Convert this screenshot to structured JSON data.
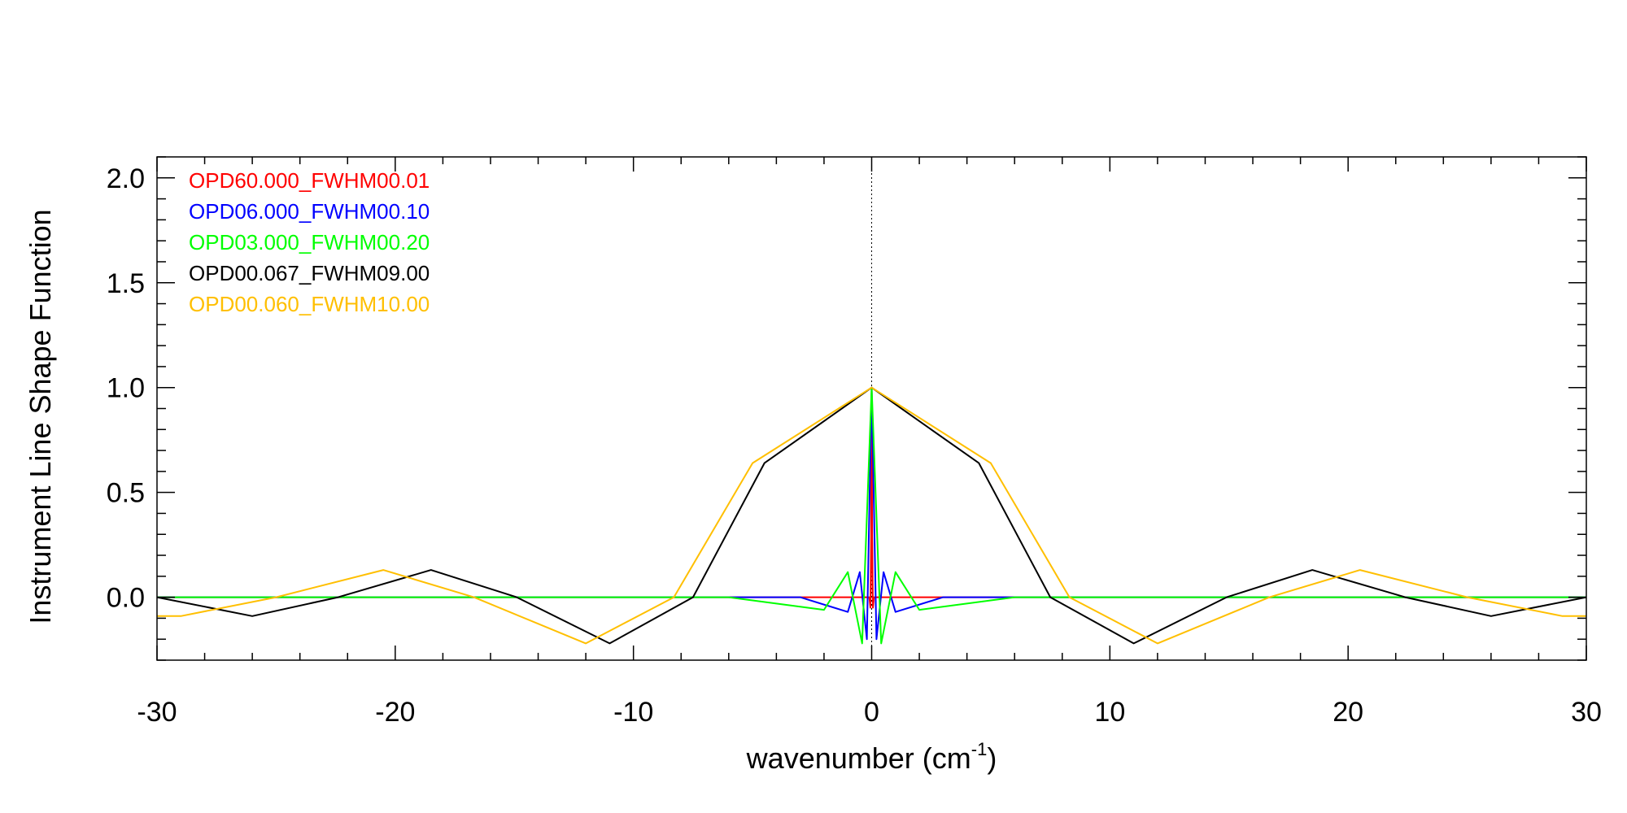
{
  "chart_data": {
    "type": "line",
    "title": "",
    "xlabel": "wavenumber (cm",
    "xlabel_superscript": "-1",
    "xlabel_suffix": ")",
    "ylabel": "Instrument Line Shape Function",
    "xlim": [
      -30,
      30
    ],
    "ylim": [
      -0.3,
      2.1
    ],
    "x_ticks": [
      -30,
      -20,
      -10,
      0,
      10,
      20,
      30
    ],
    "x_tick_labels": [
      "-30",
      "-20",
      "-10",
      "0",
      "10",
      "20",
      "30"
    ],
    "y_ticks": [
      0.0,
      0.5,
      1.0,
      1.5,
      2.0
    ],
    "y_tick_labels": [
      "0.0",
      "0.5",
      "1.0",
      "1.5",
      "2.0"
    ],
    "grid": false,
    "legend_position": "top-left",
    "reference_lines": [
      {
        "orientation": "vertical",
        "x": 0,
        "style": "dotted",
        "color": "#000000"
      },
      {
        "orientation": "horizontal",
        "y": 0,
        "style": "dotted",
        "color": "#000000"
      }
    ],
    "series": [
      {
        "name": "OPD60.000_FWHM00.01",
        "color": "#ff0000",
        "opd": 60.0,
        "fwhm": 0.01,
        "x": [
          -30,
          -0.1,
          -0.05,
          -0.02,
          0,
          0.02,
          0.05,
          0.1,
          30
        ],
        "y": [
          0,
          0,
          -0.05,
          0.3,
          1.0,
          0.3,
          -0.05,
          0,
          0
        ]
      },
      {
        "name": "OPD06.000_FWHM00.10",
        "color": "#0000ff",
        "opd": 6.0,
        "fwhm": 0.1,
        "x": [
          -30,
          -3,
          -1,
          -0.5,
          -0.2,
          0,
          0.2,
          0.5,
          1,
          3,
          30
        ],
        "y": [
          0,
          0,
          -0.07,
          0.12,
          -0.2,
          1.0,
          -0.2,
          0.12,
          -0.07,
          0,
          0
        ]
      },
      {
        "name": "OPD03.000_FWHM00.20",
        "color": "#00ff00",
        "opd": 3.0,
        "fwhm": 0.2,
        "x": [
          -30,
          -6,
          -2,
          -1,
          -0.4,
          0,
          0.4,
          1,
          2,
          6,
          30
        ],
        "y": [
          0,
          0,
          -0.06,
          0.12,
          -0.22,
          1.0,
          -0.22,
          0.12,
          -0.06,
          0,
          0
        ]
      },
      {
        "name": "OPD00.067_FWHM09.00",
        "color": "#000000",
        "opd": 0.067,
        "fwhm": 9.0,
        "x": [
          -30,
          -26,
          -22.4,
          -18.5,
          -14.9,
          -11,
          -7.5,
          -4.5,
          0,
          4.5,
          7.5,
          11,
          14.9,
          18.5,
          22.4,
          26,
          30
        ],
        "y": [
          0.0,
          -0.09,
          0.0,
          0.13,
          0.0,
          -0.22,
          0.0,
          0.64,
          1.0,
          0.64,
          0.0,
          -0.22,
          0.0,
          0.13,
          0.0,
          -0.09,
          0.0
        ]
      },
      {
        "name": "OPD00.060_FWHM10.00",
        "color": "#ffbf00",
        "opd": 0.06,
        "fwhm": 10.0,
        "x": [
          -30,
          -29,
          -25,
          -20.5,
          -16.7,
          -12,
          -8.3,
          -5,
          0,
          5,
          8.3,
          12,
          16.7,
          20.5,
          25,
          29,
          30
        ],
        "y": [
          -0.09,
          -0.09,
          0.0,
          0.13,
          0.0,
          -0.22,
          0.0,
          0.64,
          1.0,
          0.64,
          0.0,
          -0.22,
          0.0,
          0.13,
          0.0,
          -0.09,
          -0.09
        ]
      }
    ]
  }
}
